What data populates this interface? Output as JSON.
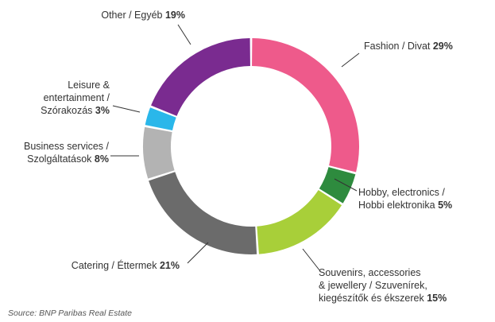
{
  "chart_data": {
    "type": "pie",
    "donut": true,
    "start_angle_deg": 0,
    "direction": "clockwise",
    "slices": [
      {
        "label_lines": [
          "Fashion / Divat"
        ],
        "value": 29,
        "value_label": "29%",
        "color": "#EE5A8B"
      },
      {
        "label_lines": [
          "Hobby, electronics /",
          "Hobbi elektronika"
        ],
        "value": 5,
        "value_label": "5%",
        "color": "#2E8B3E"
      },
      {
        "label_lines": [
          "Souvenirs, accessories",
          "& jewellery / Szuvenírek,",
          "kiegészítők és ékszerek"
        ],
        "value": 15,
        "value_label": "15%",
        "color": "#A8CF39"
      },
      {
        "label_lines": [
          "Catering / Éttermek"
        ],
        "value": 21,
        "value_label": "21%",
        "color": "#6B6B6B"
      },
      {
        "label_lines": [
          "Business services /",
          "Szolgáltatások"
        ],
        "value": 8,
        "value_label": "8%",
        "color": "#B3B3B3"
      },
      {
        "label_lines": [
          "Leisure &",
          "entertainment /",
          "Szórakozás"
        ],
        "value": 3,
        "value_label": "3%",
        "color": "#2AB7EA"
      },
      {
        "label_lines": [
          "Other / Egyéb"
        ],
        "value": 19,
        "value_label": "19%",
        "color": "#7A2B90"
      }
    ]
  },
  "source": "Source: BNP Paribas Real Estate"
}
